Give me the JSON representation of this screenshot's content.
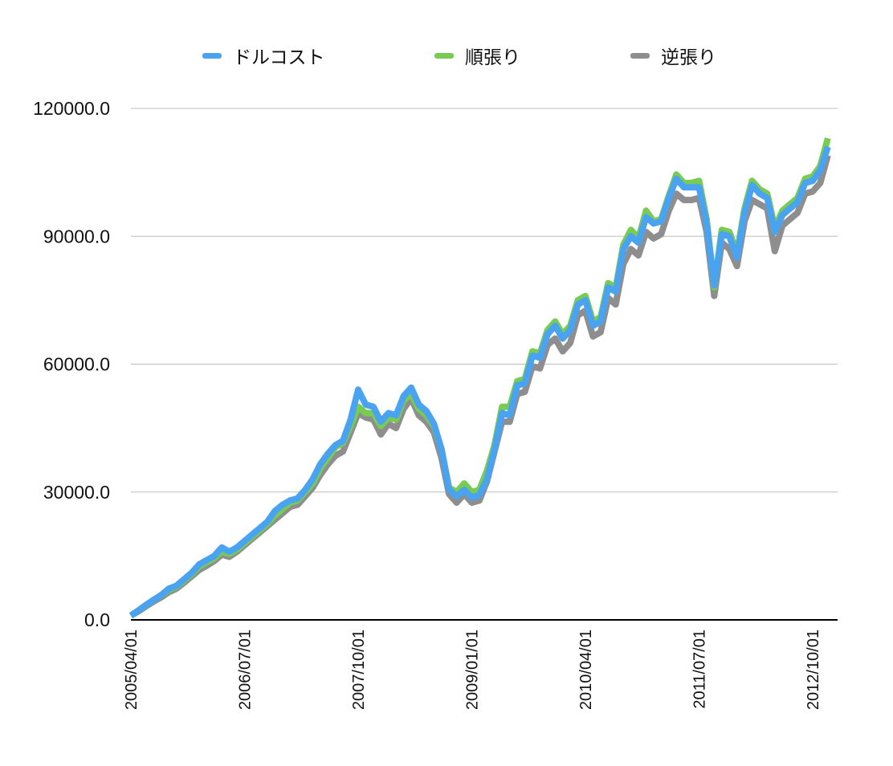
{
  "legend": [
    {
      "name": "ドルコスト",
      "color": "#4aa3f0"
    },
    {
      "name": "順張り",
      "color": "#79cc52"
    },
    {
      "name": "逆張り",
      "color": "#8e8e8e"
    }
  ],
  "chart_data": {
    "type": "line",
    "title": "",
    "xlabel": "",
    "ylabel": "",
    "ylim": [
      0,
      120000
    ],
    "y_ticks": [
      "0.0",
      "30000.0",
      "60000.0",
      "90000.0",
      "120000.0"
    ],
    "x_tick_labels": [
      "2005/04/01",
      "2006/07/01",
      "2007/10/01",
      "2009/01/01",
      "2010/04/01",
      "2011/07/01",
      "2012/10/01"
    ],
    "x_tick_index": [
      0,
      15,
      30,
      45,
      60,
      75,
      90
    ],
    "grid": true,
    "legend_position": "top",
    "x": [
      "2005/04",
      "2005/05",
      "2005/06",
      "2005/07",
      "2005/08",
      "2005/09",
      "2005/10",
      "2005/11",
      "2005/12",
      "2006/01",
      "2006/02",
      "2006/03",
      "2006/04",
      "2006/05",
      "2006/06",
      "2006/07",
      "2006/08",
      "2006/09",
      "2006/10",
      "2006/11",
      "2006/12",
      "2007/01",
      "2007/02",
      "2007/03",
      "2007/04",
      "2007/05",
      "2007/06",
      "2007/07",
      "2007/08",
      "2007/09",
      "2007/10",
      "2007/11",
      "2007/12",
      "2008/01",
      "2008/02",
      "2008/03",
      "2008/04",
      "2008/05",
      "2008/06",
      "2008/07",
      "2008/08",
      "2008/09",
      "2008/10",
      "2008/11",
      "2008/12",
      "2009/01",
      "2009/02",
      "2009/03",
      "2009/04",
      "2009/05",
      "2009/06",
      "2009/07",
      "2009/08",
      "2009/09",
      "2009/10",
      "2009/11",
      "2009/12",
      "2010/01",
      "2010/02",
      "2010/03",
      "2010/04",
      "2010/05",
      "2010/06",
      "2010/07",
      "2010/08",
      "2010/09",
      "2010/10",
      "2010/11",
      "2010/12",
      "2011/01",
      "2011/02",
      "2011/03",
      "2011/04",
      "2011/05",
      "2011/06",
      "2011/07",
      "2011/08",
      "2011/09",
      "2011/10",
      "2011/11",
      "2011/12",
      "2012/01",
      "2012/02",
      "2012/03",
      "2012/04",
      "2012/05",
      "2012/06",
      "2012/07",
      "2012/08",
      "2012/09",
      "2012/10",
      "2012/11",
      "2012/12"
    ],
    "series": [
      {
        "name": "ドルコスト",
        "color": "#4aa3f0",
        "values": [
          1000,
          2200,
          3500,
          4700,
          5800,
          7300,
          8000,
          9500,
          11000,
          13000,
          14000,
          15000,
          17000,
          16000,
          17000,
          18500,
          20000,
          21500,
          23000,
          25500,
          27000,
          28000,
          28500,
          30500,
          33000,
          36500,
          39000,
          41000,
          42000,
          47000,
          54000,
          50500,
          50000,
          46500,
          48500,
          48000,
          52500,
          54500,
          50500,
          49000,
          46000,
          40000,
          30500,
          29000,
          30500,
          28700,
          29300,
          33000,
          40000,
          48500,
          48000,
          55000,
          55500,
          62000,
          61500,
          67000,
          69000,
          66000,
          68000,
          74000,
          75000,
          69000,
          70000,
          78000,
          77000,
          87000,
          90000,
          88500,
          94500,
          93000,
          93500,
          99000,
          103500,
          101500,
          101500,
          101500,
          93000,
          78500,
          90500,
          90000,
          85000,
          95500,
          102000,
          100000,
          99000,
          91000,
          95000,
          96500,
          98000,
          102500,
          103000,
          105500,
          111000
        ]
      },
      {
        "name": "順張り",
        "color": "#79cc52",
        "values": [
          1000,
          2200,
          3500,
          4700,
          5800,
          7000,
          7800,
          9200,
          10700,
          12500,
          13500,
          14500,
          16000,
          15500,
          16500,
          18000,
          19500,
          21000,
          22500,
          24500,
          26000,
          27500,
          28000,
          30000,
          32000,
          35500,
          38000,
          40500,
          41500,
          45500,
          50000,
          48500,
          48500,
          45500,
          47500,
          47000,
          51500,
          53000,
          49500,
          48000,
          45500,
          40000,
          31000,
          30000,
          32000,
          30000,
          30500,
          35000,
          41000,
          50000,
          50000,
          56000,
          56500,
          63000,
          62500,
          68000,
          70000,
          67000,
          69000,
          75000,
          76000,
          70000,
          71000,
          79000,
          78000,
          88000,
          91500,
          89500,
          96000,
          93500,
          94000,
          99500,
          104500,
          102500,
          102500,
          103000,
          94000,
          78000,
          91500,
          91000,
          86000,
          96500,
          103000,
          101000,
          100000,
          92000,
          96000,
          97500,
          99000,
          103500,
          104000,
          106500,
          113000
        ]
      },
      {
        "name": "逆張り",
        "color": "#8e8e8e",
        "values": [
          1000,
          2000,
          3200,
          4300,
          5300,
          6500,
          7300,
          8700,
          10200,
          11700,
          12700,
          13800,
          15300,
          14800,
          16000,
          17500,
          19000,
          20500,
          22000,
          23500,
          25000,
          26500,
          27000,
          29000,
          31000,
          34000,
          36500,
          38500,
          39500,
          44000,
          48500,
          47500,
          47000,
          43500,
          46000,
          45000,
          49500,
          52000,
          48000,
          46500,
          44000,
          38000,
          29500,
          27500,
          29500,
          27500,
          28000,
          32500,
          39500,
          46500,
          46500,
          53000,
          53500,
          59500,
          59000,
          64500,
          66000,
          63000,
          65000,
          71500,
          72500,
          66500,
          67500,
          75500,
          74000,
          83500,
          87000,
          85500,
          91000,
          89500,
          90500,
          96000,
          100000,
          98500,
          98500,
          99000,
          91000,
          76000,
          88500,
          87000,
          83000,
          93500,
          98500,
          97500,
          96500,
          86500,
          92500,
          94000,
          95500,
          100000,
          100500,
          102500,
          109000
        ]
      }
    ]
  }
}
